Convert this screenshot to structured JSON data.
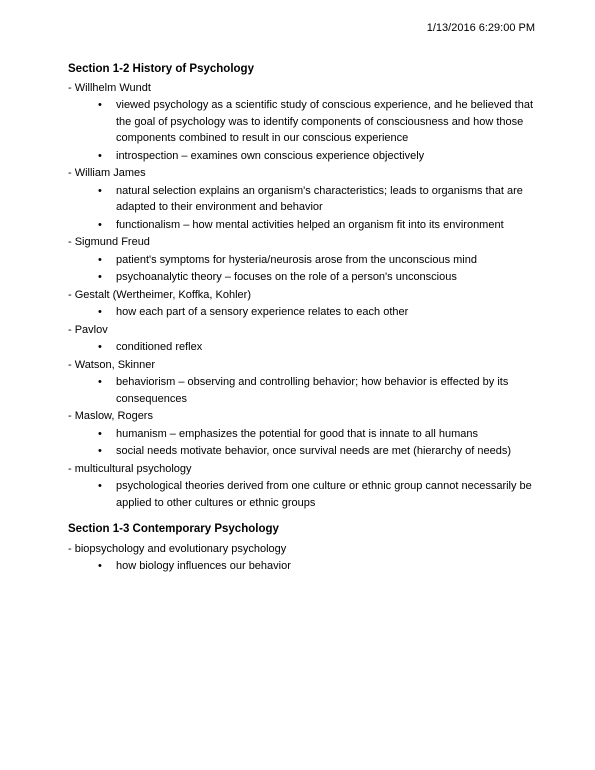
{
  "timestamp": "1/13/2016 6:29:00 PM",
  "section1": {
    "heading": "Section 1-2 History of Psychology",
    "items": [
      {
        "label": "- Willhelm Wundt",
        "bullets": [
          "viewed psychology as a scientific study of conscious experience, and he believed that the goal of psychology was to identify components of consciousness and how those components combined to result in our conscious experience",
          "introspection – examines own conscious experience objectively"
        ]
      },
      {
        "label": "- William James",
        "bullets": [
          "natural selection explains an organism's characteristics; leads to organisms that are adapted to their environment and behavior",
          "functionalism – how mental activities helped an organism fit into its environment"
        ]
      },
      {
        "label": "- Sigmund Freud",
        "bullets": [
          "patient's symptoms for hysteria/neurosis arose from the unconscious mind",
          "psychoanalytic theory – focuses on the role of a person's unconscious"
        ]
      },
      {
        "label": "- Gestalt (Wertheimer, Koffka, Kohler)",
        "bullets": [
          "how each part of a sensory experience relates to each other"
        ]
      },
      {
        "label": "- Pavlov",
        "bullets": [
          "conditioned reflex"
        ]
      },
      {
        "label": "- Watson, Skinner",
        "bullets": [
          "behaviorism – observing and controlling behavior; how behavior is effected by its consequences"
        ]
      },
      {
        "label": "- Maslow, Rogers",
        "bullets": [
          "humanism – emphasizes the potential for good that is innate to all humans",
          "social needs motivate behavior, once survival needs are met (hierarchy of needs)"
        ]
      },
      {
        "label": "- multicultural psychology",
        "bullets": [
          "psychological theories derived from one culture or ethnic group cannot necessarily be applied to other cultures or ethnic groups"
        ]
      }
    ]
  },
  "section2": {
    "heading": "Section 1-3 Contemporary Psychology",
    "items": [
      {
        "label": "- biopsychology and evolutionary psychology",
        "bullets": [
          "how biology influences our behavior"
        ]
      }
    ]
  },
  "colors": {
    "text": "#000000",
    "background": "#ffffff"
  },
  "typography": {
    "font_family": "Verdana",
    "body_fontsize": 11,
    "heading_fontweight": "bold"
  }
}
